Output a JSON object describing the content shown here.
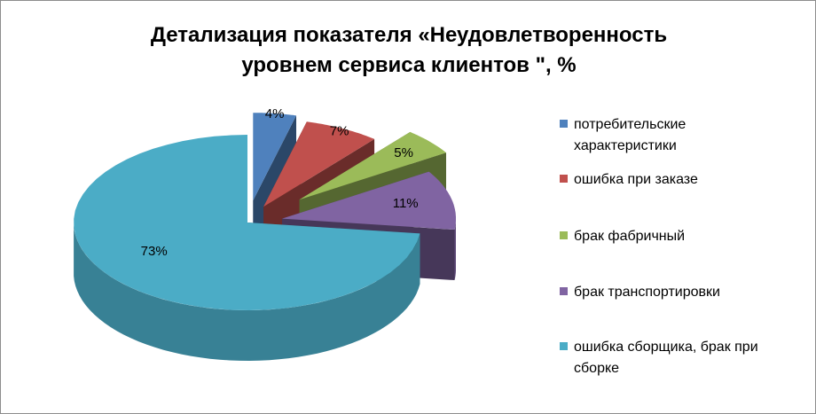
{
  "chart_data": {
    "type": "pie",
    "title": "Детализация показателя «Неудовлетворенность уровнем сервиса клиентов \", %",
    "title_lines": [
      "Детализация показателя «Неудовлетворенность",
      "уровнем сервиса клиентов \", %"
    ],
    "style": "3d-exploded",
    "legend_position": "right",
    "slices": [
      {
        "label": "потребительские характеристики",
        "legend_lines": [
          "потребительские",
          "характеристики"
        ],
        "value": 4,
        "value_label": "4%",
        "color": "#4f81bd"
      },
      {
        "label": "ошибка при заказе",
        "legend_lines": [
          "ошибка при заказе"
        ],
        "value": 7,
        "value_label": "7%",
        "color": "#c0504d"
      },
      {
        "label": "брак фабричный",
        "legend_lines": [
          "брак фабричный"
        ],
        "value": 5,
        "value_label": "5%",
        "color": "#9bbb59"
      },
      {
        "label": "брак транспортировки",
        "legend_lines": [
          "брак транспортировки"
        ],
        "value": 11,
        "value_label": "11%",
        "color": "#8064a2"
      },
      {
        "label": "ошибка сборщика, брак при сборке",
        "legend_lines": [
          "ошибка сборщика, брак при",
          "сборке"
        ],
        "value": 73,
        "value_label": "73%",
        "color": "#4bacc6"
      }
    ]
  }
}
